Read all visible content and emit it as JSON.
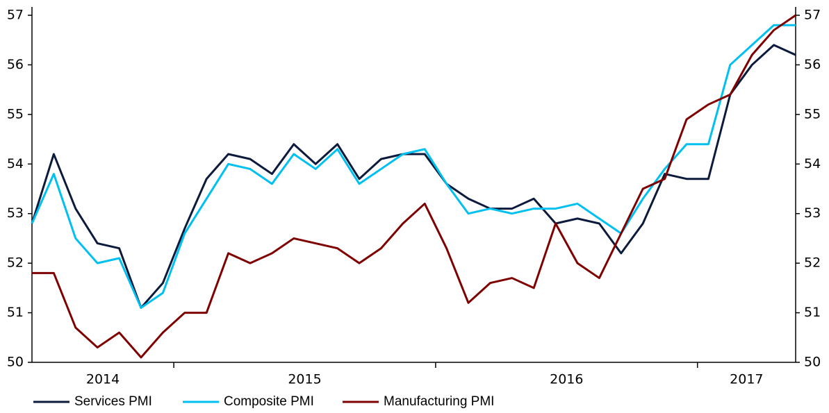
{
  "chart_data": {
    "type": "line",
    "categories": [
      null,
      null,
      null,
      null,
      null,
      null,
      null,
      null,
      null,
      null,
      null,
      null,
      null,
      null,
      null,
      null,
      null,
      null,
      null,
      null,
      null,
      null,
      null,
      null,
      null,
      null,
      null,
      null,
      null,
      null,
      null,
      null,
      null,
      null,
      null,
      null
    ],
    "x_groups": [
      "2014",
      "2015",
      "2016",
      "2017"
    ],
    "x_group_starts": [
      0,
      7,
      19,
      31
    ],
    "series": [
      {
        "name": "Services PMI",
        "color": "#0c1a3c",
        "values": [
          52.8,
          54.2,
          53.1,
          52.4,
          52.3,
          51.1,
          51.6,
          52.7,
          53.7,
          54.2,
          54.1,
          53.8,
          54.4,
          54.0,
          54.4,
          53.7,
          54.1,
          54.2,
          54.2,
          53.6,
          53.3,
          53.1,
          53.1,
          53.3,
          52.8,
          52.9,
          52.8,
          52.2,
          52.8,
          53.8,
          53.7,
          53.7,
          55.4,
          56.0,
          56.4,
          56.2
        ]
      },
      {
        "name": "Composite PMI",
        "color": "#00c0f0",
        "values": [
          52.8,
          53.8,
          52.5,
          52.0,
          52.1,
          51.1,
          51.4,
          52.6,
          53.3,
          54.0,
          53.9,
          53.6,
          54.2,
          53.9,
          54.3,
          53.6,
          53.9,
          54.2,
          54.3,
          53.6,
          53.0,
          53.1,
          53.0,
          53.1,
          53.1,
          53.2,
          52.9,
          52.6,
          53.3,
          53.9,
          54.4,
          54.4,
          56.0,
          56.4,
          56.8,
          56.8
        ]
      },
      {
        "name": "Manufacturing PMI",
        "color": "#7f0000",
        "values": [
          51.8,
          51.8,
          50.7,
          50.3,
          50.6,
          50.1,
          50.6,
          51.0,
          51.0,
          52.2,
          52.0,
          52.2,
          52.5,
          52.4,
          52.3,
          52.0,
          52.3,
          52.8,
          53.2,
          52.3,
          51.2,
          51.6,
          51.7,
          51.5,
          52.8,
          52.0,
          51.7,
          52.6,
          53.5,
          53.7,
          54.9,
          55.2,
          55.4,
          56.2,
          56.7,
          57.0
        ]
      }
    ],
    "ylim": [
      50,
      57
    ],
    "yticks": [
      50,
      51,
      52,
      53,
      54,
      55,
      56,
      57
    ],
    "y2lim": [
      50,
      57
    ],
    "y2ticks": [
      50,
      51,
      52,
      53,
      54,
      55,
      56,
      57
    ],
    "legend": "bottom"
  }
}
